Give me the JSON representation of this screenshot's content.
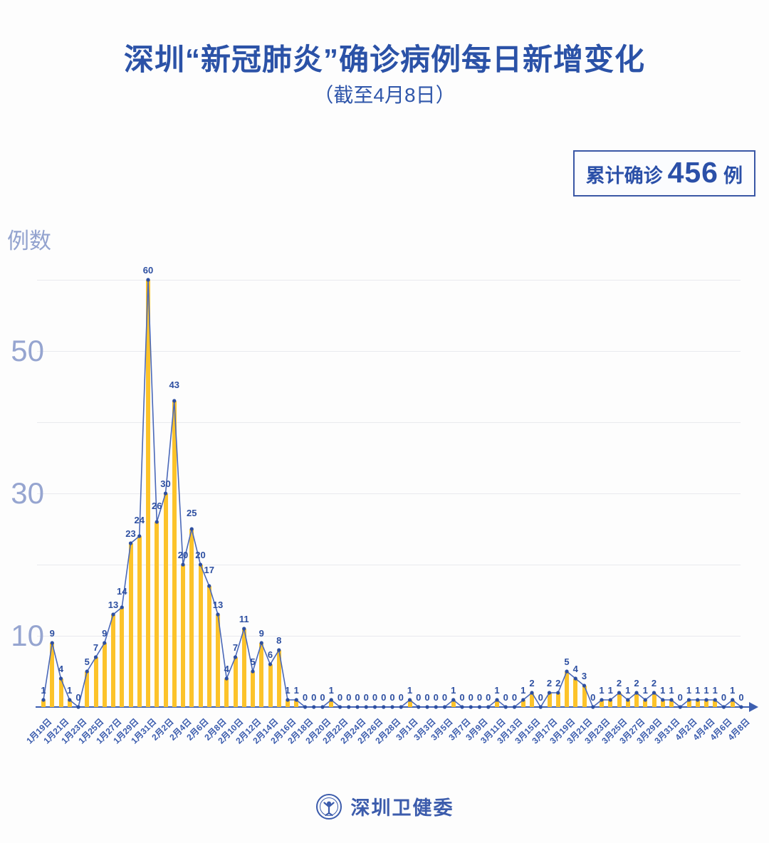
{
  "header": {
    "title": "深圳“新冠肺炎”确诊病例每日新增变化",
    "subtitle": "（截至4月8日）",
    "badge": {
      "prefix": "累计确诊",
      "count": "456",
      "suffix": "例"
    }
  },
  "footer": {
    "source_label": "深圳卫健委",
    "logo": "shenzhen-health-commission-emblem"
  },
  "chart_data": {
    "type": "bar",
    "overlay": "line-with-point-markers-and-value-labels",
    "title": "深圳“新冠肺炎”确诊病例每日新增变化（截至4月8日）",
    "xlabel": "",
    "ylabel": "例数",
    "ylim": [
      0,
      60
    ],
    "yticks_shown": [
      10,
      30,
      50
    ],
    "gridlines": [
      10,
      20,
      30,
      40,
      50,
      60
    ],
    "x_label_interval": 2,
    "legend_position": "none",
    "cumulative_total": 456,
    "categories": [
      "1月19日",
      "1月20日",
      "1月21日",
      "1月22日",
      "1月23日",
      "1月24日",
      "1月25日",
      "1月26日",
      "1月27日",
      "1月28日",
      "1月29日",
      "1月30日",
      "1月31日",
      "2月1日",
      "2月2日",
      "2月3日",
      "2月4日",
      "2月5日",
      "2月6日",
      "2月7日",
      "2月8日",
      "2月9日",
      "2月10日",
      "2月11日",
      "2月12日",
      "2月13日",
      "2月14日",
      "2月15日",
      "2月16日",
      "2月17日",
      "2月18日",
      "2月19日",
      "2月20日",
      "2月21日",
      "2月22日",
      "2月23日",
      "2月24日",
      "2月25日",
      "2月26日",
      "2月27日",
      "2月28日",
      "2月29日",
      "3月1日",
      "3月2日",
      "3月3日",
      "3月4日",
      "3月5日",
      "3月6日",
      "3月7日",
      "3月8日",
      "3月9日",
      "3月10日",
      "3月11日",
      "3月12日",
      "3月13日",
      "3月14日",
      "3月15日",
      "3月16日",
      "3月17日",
      "3月18日",
      "3月19日",
      "3月20日",
      "3月21日",
      "3月22日",
      "3月23日",
      "3月24日",
      "3月25日",
      "3月26日",
      "3月27日",
      "3月28日",
      "3月29日",
      "3月30日",
      "3月31日",
      "4月1日",
      "4月2日",
      "4月3日",
      "4月4日",
      "4月5日",
      "4月6日",
      "4月7日",
      "4月8日"
    ],
    "values": [
      1,
      9,
      4,
      1,
      0,
      5,
      7,
      9,
      13,
      14,
      23,
      24,
      60,
      26,
      30,
      43,
      20,
      25,
      20,
      17,
      13,
      4,
      7,
      11,
      5,
      9,
      6,
      8,
      1,
      1,
      0,
      0,
      0,
      1,
      0,
      0,
      0,
      0,
      0,
      0,
      0,
      0,
      1,
      0,
      0,
      0,
      0,
      1,
      0,
      0,
      0,
      0,
      1,
      0,
      0,
      1,
      2,
      0,
      2,
      2,
      5,
      4,
      3,
      0,
      1,
      1,
      2,
      1,
      2,
      1,
      2,
      1,
      1,
      0,
      1,
      1,
      1,
      1,
      0,
      1,
      0
    ],
    "colors": {
      "bar": "#fcc32a",
      "line": "#4a68b8",
      "point": "#2d4fa1",
      "value_label": "#2d4fa1",
      "axis": "#3d5fb0",
      "x_label": "#3b5cad",
      "y_label": "#96a5d0",
      "gridline": "#e9eaee",
      "title": "#2b52a7"
    }
  }
}
